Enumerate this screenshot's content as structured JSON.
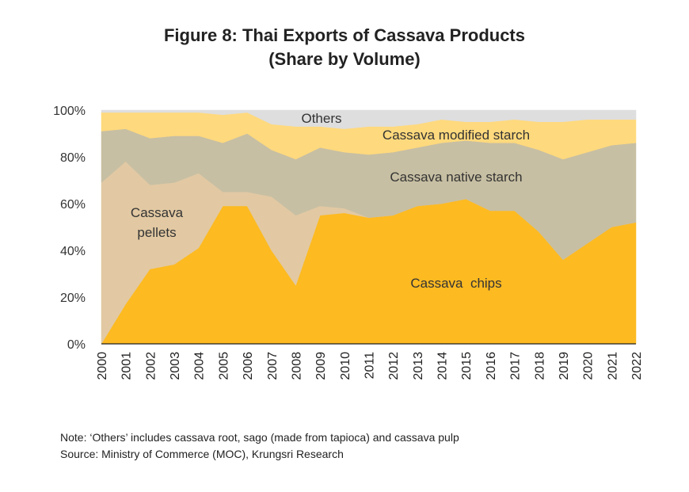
{
  "title_line1": "Figure 8: Thai Exports of Cassava Products",
  "title_line2": "(Share by Volume)",
  "note": "Note: ‘Others’ includes cassava root, sago (made from tapioca) and cassava pulp",
  "source": "Source: Ministry of Commerce (MOC), Krungsri Research",
  "chart_data": {
    "type": "area",
    "stacked": true,
    "x": [
      "2000",
      "2001",
      "2002",
      "2003",
      "2004",
      "2005",
      "2006",
      "2007",
      "2008",
      "2009",
      "2010",
      "2011",
      "2012",
      "2013",
      "2014",
      "2015",
      "2016",
      "2017",
      "2018",
      "2019",
      "2020",
      "2021",
      "2022"
    ],
    "y_unit": "%",
    "ylim": [
      0,
      100
    ],
    "yticks": [
      "0%",
      "20%",
      "40%",
      "60%",
      "80%",
      "100%"
    ],
    "grid": false,
    "series": [
      {
        "name": "Cassava  chips",
        "color": "#FDBA21",
        "values": [
          0,
          17,
          32,
          34,
          41,
          59,
          59,
          40,
          25,
          55,
          56,
          54,
          55,
          59,
          60,
          62,
          57,
          57,
          48,
          36,
          43,
          50,
          52
        ]
      },
      {
        "name": "Cassava pellets",
        "color": "#E2C9A3",
        "values": [
          69,
          61,
          36,
          35,
          32,
          6,
          6,
          23,
          30,
          4,
          2,
          0,
          0,
          0,
          0,
          0,
          0,
          0,
          0,
          0,
          0,
          0,
          0
        ]
      },
      {
        "name": "Cassava native starch",
        "color": "#C7BFA3",
        "values": [
          22,
          14,
          20,
          20,
          16,
          21,
          25,
          20,
          24,
          25,
          24,
          27,
          27,
          25,
          26,
          25,
          29,
          29,
          35,
          43,
          39,
          35,
          34
        ]
      },
      {
        "name": "Cassava modified starch",
        "color": "#FFD97D",
        "values": [
          8,
          7,
          11,
          10,
          10,
          12,
          9,
          11,
          14,
          9,
          10,
          12,
          11,
          10,
          10,
          8,
          9,
          10,
          12,
          16,
          14,
          11,
          10
        ]
      },
      {
        "name": "Others",
        "color": "#DEDEDE",
        "values": [
          1,
          1,
          1,
          1,
          1,
          2,
          1,
          6,
          7,
          7,
          8,
          7,
          7,
          6,
          4,
          5,
          5,
          4,
          5,
          5,
          4,
          4,
          4
        ]
      }
    ],
    "labels": {
      "chips": "Cassava  chips",
      "pellets_line1": "Cassava",
      "pellets_line2": "pellets",
      "native": "Cassava native starch",
      "modified": "Cassava modified starch",
      "others": "Others"
    }
  }
}
